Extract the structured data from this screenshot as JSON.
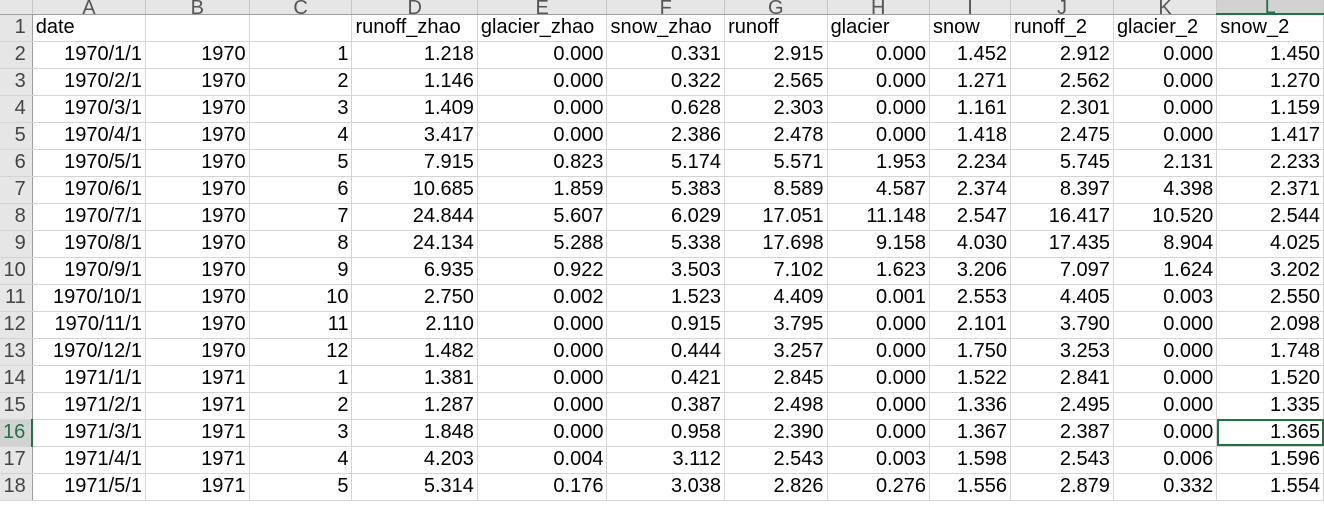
{
  "columns": [
    "A",
    "B",
    "C",
    "D",
    "E",
    "F",
    "G",
    "H",
    "I",
    "J",
    "K",
    "L"
  ],
  "selected": {
    "column": "L",
    "row": "16"
  },
  "accent_color": "#217346",
  "rows": [
    {
      "num": "1",
      "cells": [
        "date",
        "",
        "",
        "runoff_zhao",
        "glacier_zhao",
        "snow_zhao",
        "runoff",
        "glacier",
        "snow",
        "runoff_2",
        "glacier_2",
        "snow_2"
      ]
    },
    {
      "num": "2",
      "cells": [
        "1970/1/1",
        "1970",
        "1",
        "1.218",
        "0.000",
        "0.331",
        "2.915",
        "0.000",
        "1.452",
        "2.912",
        "0.000",
        "1.450"
      ]
    },
    {
      "num": "3",
      "cells": [
        "1970/2/1",
        "1970",
        "2",
        "1.146",
        "0.000",
        "0.322",
        "2.565",
        "0.000",
        "1.271",
        "2.562",
        "0.000",
        "1.270"
      ]
    },
    {
      "num": "4",
      "cells": [
        "1970/3/1",
        "1970",
        "3",
        "1.409",
        "0.000",
        "0.628",
        "2.303",
        "0.000",
        "1.161",
        "2.301",
        "0.000",
        "1.159"
      ]
    },
    {
      "num": "5",
      "cells": [
        "1970/4/1",
        "1970",
        "4",
        "3.417",
        "0.000",
        "2.386",
        "2.478",
        "0.000",
        "1.418",
        "2.475",
        "0.000",
        "1.417"
      ]
    },
    {
      "num": "6",
      "cells": [
        "1970/5/1",
        "1970",
        "5",
        "7.915",
        "0.823",
        "5.174",
        "5.571",
        "1.953",
        "2.234",
        "5.745",
        "2.131",
        "2.233"
      ]
    },
    {
      "num": "7",
      "cells": [
        "1970/6/1",
        "1970",
        "6",
        "10.685",
        "1.859",
        "5.383",
        "8.589",
        "4.587",
        "2.374",
        "8.397",
        "4.398",
        "2.371"
      ]
    },
    {
      "num": "8",
      "cells": [
        "1970/7/1",
        "1970",
        "7",
        "24.844",
        "5.607",
        "6.029",
        "17.051",
        "11.148",
        "2.547",
        "16.417",
        "10.520",
        "2.544"
      ]
    },
    {
      "num": "9",
      "cells": [
        "1970/8/1",
        "1970",
        "8",
        "24.134",
        "5.288",
        "5.338",
        "17.698",
        "9.158",
        "4.030",
        "17.435",
        "8.904",
        "4.025"
      ]
    },
    {
      "num": "10",
      "cells": [
        "1970/9/1",
        "1970",
        "9",
        "6.935",
        "0.922",
        "3.503",
        "7.102",
        "1.623",
        "3.206",
        "7.097",
        "1.624",
        "3.202"
      ]
    },
    {
      "num": "11",
      "cells": [
        "1970/10/1",
        "1970",
        "10",
        "2.750",
        "0.002",
        "1.523",
        "4.409",
        "0.001",
        "2.553",
        "4.405",
        "0.003",
        "2.550"
      ]
    },
    {
      "num": "12",
      "cells": [
        "1970/11/1",
        "1970",
        "11",
        "2.110",
        "0.000",
        "0.915",
        "3.795",
        "0.000",
        "2.101",
        "3.790",
        "0.000",
        "2.098"
      ]
    },
    {
      "num": "13",
      "cells": [
        "1970/12/1",
        "1970",
        "12",
        "1.482",
        "0.000",
        "0.444",
        "3.257",
        "0.000",
        "1.750",
        "3.253",
        "0.000",
        "1.748"
      ]
    },
    {
      "num": "14",
      "cells": [
        "1971/1/1",
        "1971",
        "1",
        "1.381",
        "0.000",
        "0.421",
        "2.845",
        "0.000",
        "1.522",
        "2.841",
        "0.000",
        "1.520"
      ]
    },
    {
      "num": "15",
      "cells": [
        "1971/2/1",
        "1971",
        "2",
        "1.287",
        "0.000",
        "0.387",
        "2.498",
        "0.000",
        "1.336",
        "2.495",
        "0.000",
        "1.335"
      ]
    },
    {
      "num": "16",
      "cells": [
        "1971/3/1",
        "1971",
        "3",
        "1.848",
        "0.000",
        "0.958",
        "2.390",
        "0.000",
        "1.367",
        "2.387",
        "0.000",
        "1.365"
      ]
    },
    {
      "num": "17",
      "cells": [
        "1971/4/1",
        "1971",
        "4",
        "4.203",
        "0.004",
        "3.112",
        "2.543",
        "0.003",
        "1.598",
        "2.543",
        "0.006",
        "1.596"
      ]
    },
    {
      "num": "18",
      "cells": [
        "1971/5/1",
        "1971",
        "5",
        "5.314",
        "0.176",
        "3.038",
        "2.826",
        "0.276",
        "1.556",
        "2.879",
        "0.332",
        "1.554"
      ]
    }
  ]
}
